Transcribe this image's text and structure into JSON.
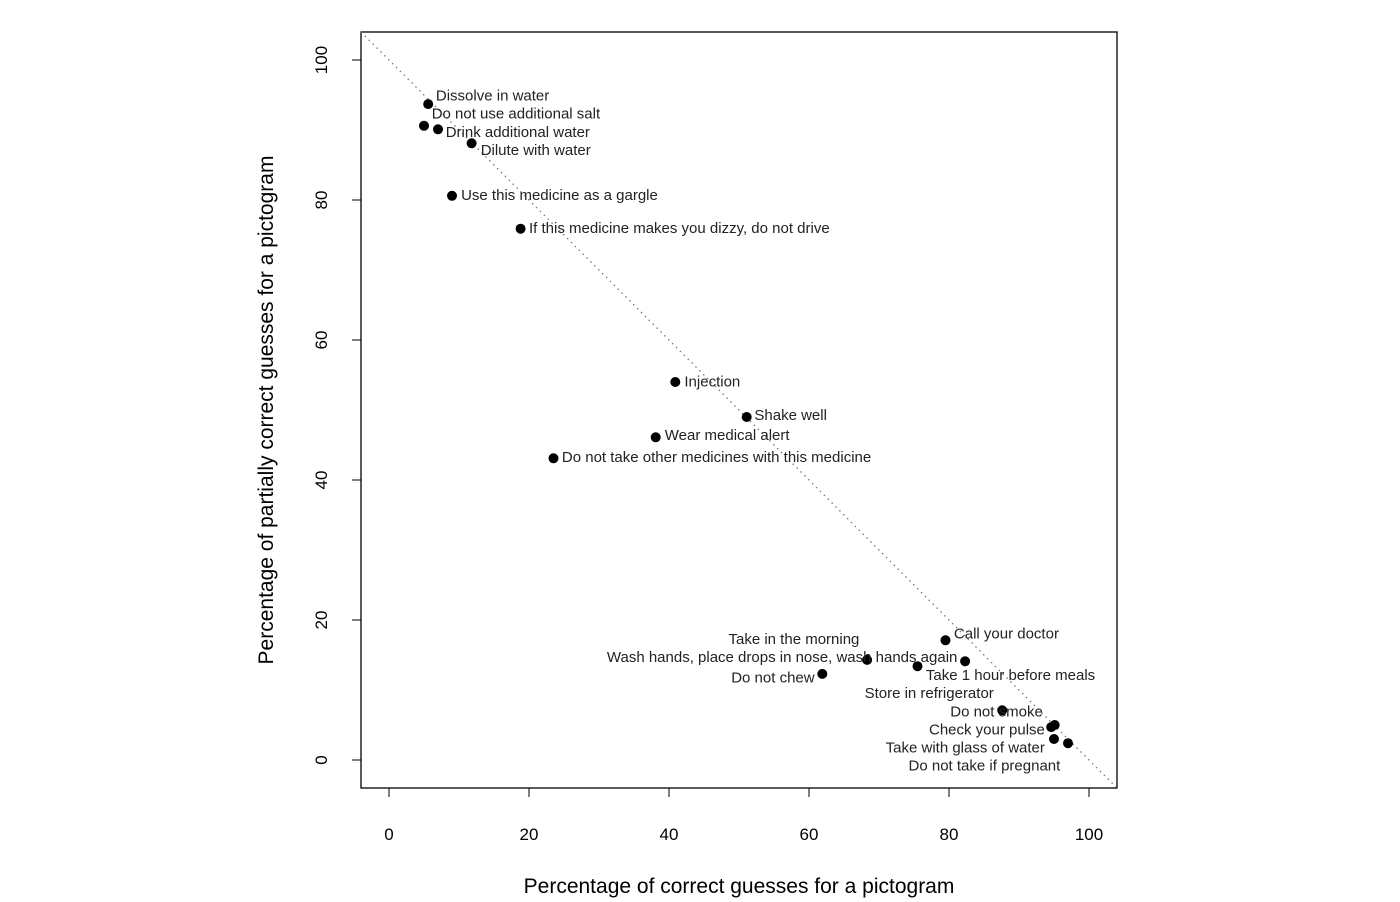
{
  "chart_data": {
    "type": "scatter",
    "title": "",
    "xlabel": "Percentage of correct guesses for a pictogram",
    "ylabel": "Percentage of partially correct guesses for a pictogram",
    "xlim": [
      -4,
      104
    ],
    "ylim": [
      -4,
      104
    ],
    "xticks": [
      0,
      20,
      40,
      60,
      80,
      100
    ],
    "yticks": [
      0,
      20,
      40,
      60,
      80,
      100
    ],
    "grid": false,
    "reference_line": {
      "style": "dotted",
      "from": [
        -4,
        104
      ],
      "to": [
        104,
        -4
      ]
    },
    "points": [
      {
        "label": "Dissolve in water",
        "x": 5.6,
        "y": 93.7,
        "lx": 6.7,
        "ly": 94.6,
        "anchor": "start"
      },
      {
        "label": "Do not use additional salt",
        "x": 5.0,
        "y": 90.6,
        "lx": 6.1,
        "ly": 92.0,
        "anchor": "start"
      },
      {
        "label": "Drink additional water",
        "x": 7.0,
        "y": 90.1,
        "lx": 8.1,
        "ly": 89.9,
        "anchor": "start"
      },
      {
        "label": "Dilute with water",
        "x": 11.8,
        "y": 88.1,
        "lx": 13.1,
        "ly": 87.6,
        "anchor": "start"
      },
      {
        "label": "Use this medicine as a gargle",
        "x": 9.0,
        "y": 80.6,
        "lx": 10.3,
        "ly": 80.7,
        "anchor": "start"
      },
      {
        "label": "If this medicine makes you dizzy, do not drive",
        "x": 18.8,
        "y": 75.9,
        "lx": 20.0,
        "ly": 76.0,
        "anchor": "start"
      },
      {
        "label": "Injection",
        "x": 40.9,
        "y": 54.0,
        "lx": 42.2,
        "ly": 54.1,
        "anchor": "start"
      },
      {
        "label": "Shake well",
        "x": 51.1,
        "y": 49.0,
        "lx": 52.2,
        "ly": 49.3,
        "anchor": "start"
      },
      {
        "label": "Wear medical alert",
        "x": 38.1,
        "y": 46.1,
        "lx": 39.4,
        "ly": 46.4,
        "anchor": "start"
      },
      {
        "label": "Do not take other medicines with this medicine",
        "x": 23.5,
        "y": 43.1,
        "lx": 24.7,
        "ly": 43.3,
        "anchor": "start"
      },
      {
        "label": "Call your doctor",
        "x": 79.5,
        "y": 17.1,
        "lx": 80.7,
        "ly": 18.1,
        "anchor": "start"
      },
      {
        "label": "Take in the morning",
        "x": 68.3,
        "y": 14.3,
        "lx": 67.2,
        "ly": 16.4,
        "anchor": "end"
      },
      {
        "label": "Wash hands, place drops in nose, wash hands again",
        "x": 82.3,
        "y": 14.1,
        "lx": 81.2,
        "ly": 14.4,
        "anchor": "end"
      },
      {
        "label": "Take 1 hour before meals",
        "x": 75.5,
        "y": 13.4,
        "lx": 76.7,
        "ly": 12.1,
        "anchor": "start"
      },
      {
        "label": "Do not chew",
        "x": 61.9,
        "y": 12.3,
        "lx": 60.8,
        "ly": 12.0,
        "anchor": "end"
      },
      {
        "label": "Store in refrigerator",
        "x": 87.6,
        "y": 7.1,
        "lx": 86.4,
        "ly": 8.4,
        "anchor": "end"
      },
      {
        "label": "Do not smoke",
        "x": 95.1,
        "y": 5.0,
        "lx": 93.4,
        "ly": 6.3,
        "anchor": "end"
      },
      {
        "label": "Check your pulse",
        "x": 94.6,
        "y": 4.7,
        "lx": 93.7,
        "ly": 4.6,
        "anchor": "end"
      },
      {
        "label": "Take with glass of water",
        "x": 95.0,
        "y": 3.0,
        "lx": 93.7,
        "ly": 2.6,
        "anchor": "end"
      },
      {
        "label": "Do not take if pregnant",
        "x": 97.0,
        "y": 2.4,
        "lx": 95.9,
        "ly": 0.9,
        "anchor": "end"
      }
    ]
  }
}
